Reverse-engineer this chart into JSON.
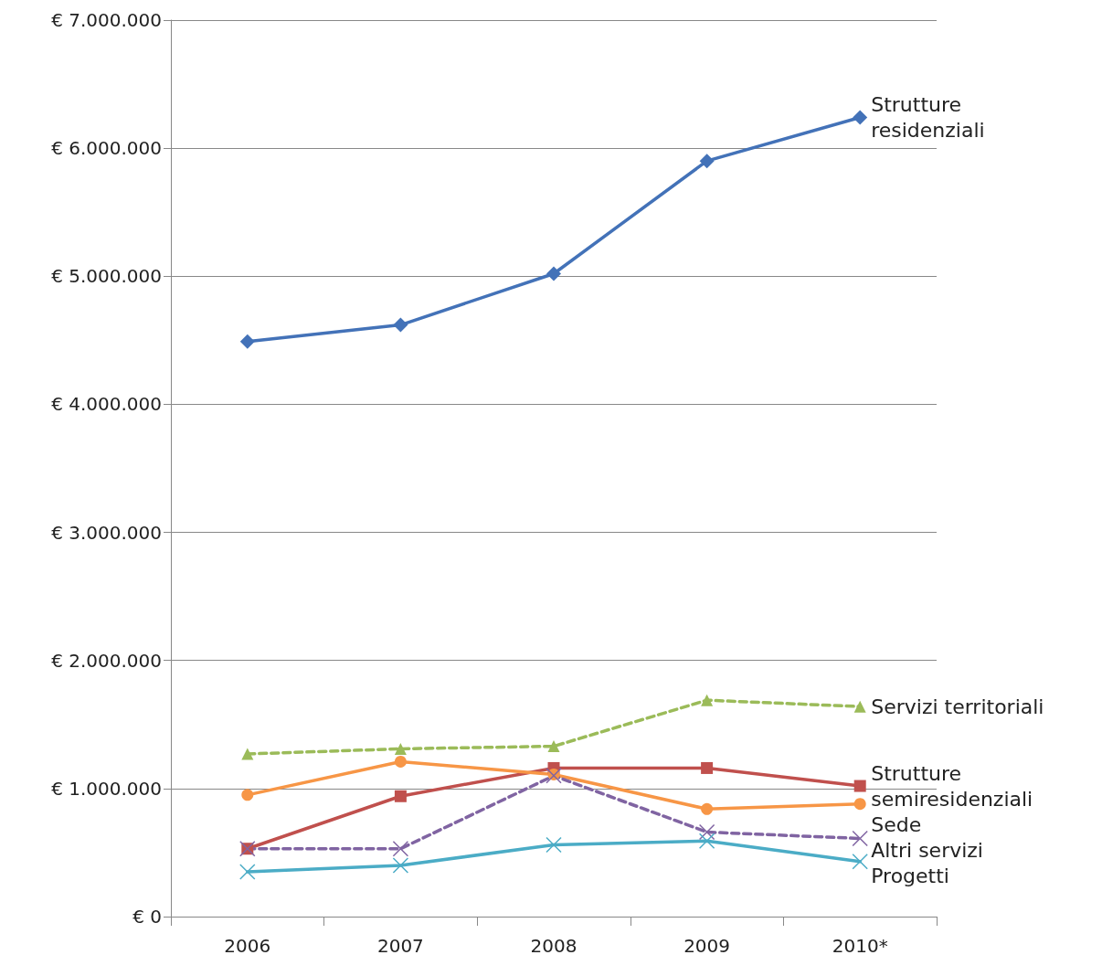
{
  "chart_data": {
    "type": "line",
    "categories": [
      "2006",
      "2007",
      "2008",
      "2009",
      "2010*"
    ],
    "ylim": [
      0,
      7000000
    ],
    "yticks": [
      {
        "value": 0,
        "label": "€ 0"
      },
      {
        "value": 1000000,
        "label": "€ 1.000.000"
      },
      {
        "value": 2000000,
        "label": "€ 2.000.000"
      },
      {
        "value": 3000000,
        "label": "€ 3.000.000"
      },
      {
        "value": 4000000,
        "label": "€ 4.000.000"
      },
      {
        "value": 5000000,
        "label": "€ 5.000.000"
      },
      {
        "value": 6000000,
        "label": "€ 6.000.000"
      },
      {
        "value": 7000000,
        "label": "€ 7.000.000"
      }
    ],
    "grid": "y",
    "legend": false,
    "series": [
      {
        "name": "Strutture residenziali",
        "color": "#4372b8",
        "marker": "diamond",
        "line_style": "solid",
        "values": [
          4490000,
          4620000,
          5020000,
          5900000,
          6240000
        ]
      },
      {
        "name": "Servizi territoriali",
        "color": "#9bbb59",
        "marker": "triangle",
        "line_style": "dashed",
        "values": [
          1270000,
          1310000,
          1330000,
          1690000,
          1640000
        ]
      },
      {
        "name": "Strutture semiresidenziali",
        "color": "#c0504d",
        "marker": "square",
        "line_style": "solid",
        "values": [
          530000,
          940000,
          1160000,
          1160000,
          1020000
        ]
      },
      {
        "name": "Sede",
        "color": "#f79646",
        "marker": "circle",
        "line_style": "solid",
        "values": [
          950000,
          1210000,
          1110000,
          840000,
          880000
        ]
      },
      {
        "name": "Altri servizi",
        "color": "#8064a2",
        "marker": "cross",
        "line_style": "dashed",
        "values": [
          530000,
          530000,
          1100000,
          660000,
          610000
        ]
      },
      {
        "name": "Progetti",
        "color": "#4bacc6",
        "marker": "cross",
        "line_style": "solid",
        "values": [
          350000,
          400000,
          560000,
          590000,
          430000
        ]
      }
    ]
  }
}
